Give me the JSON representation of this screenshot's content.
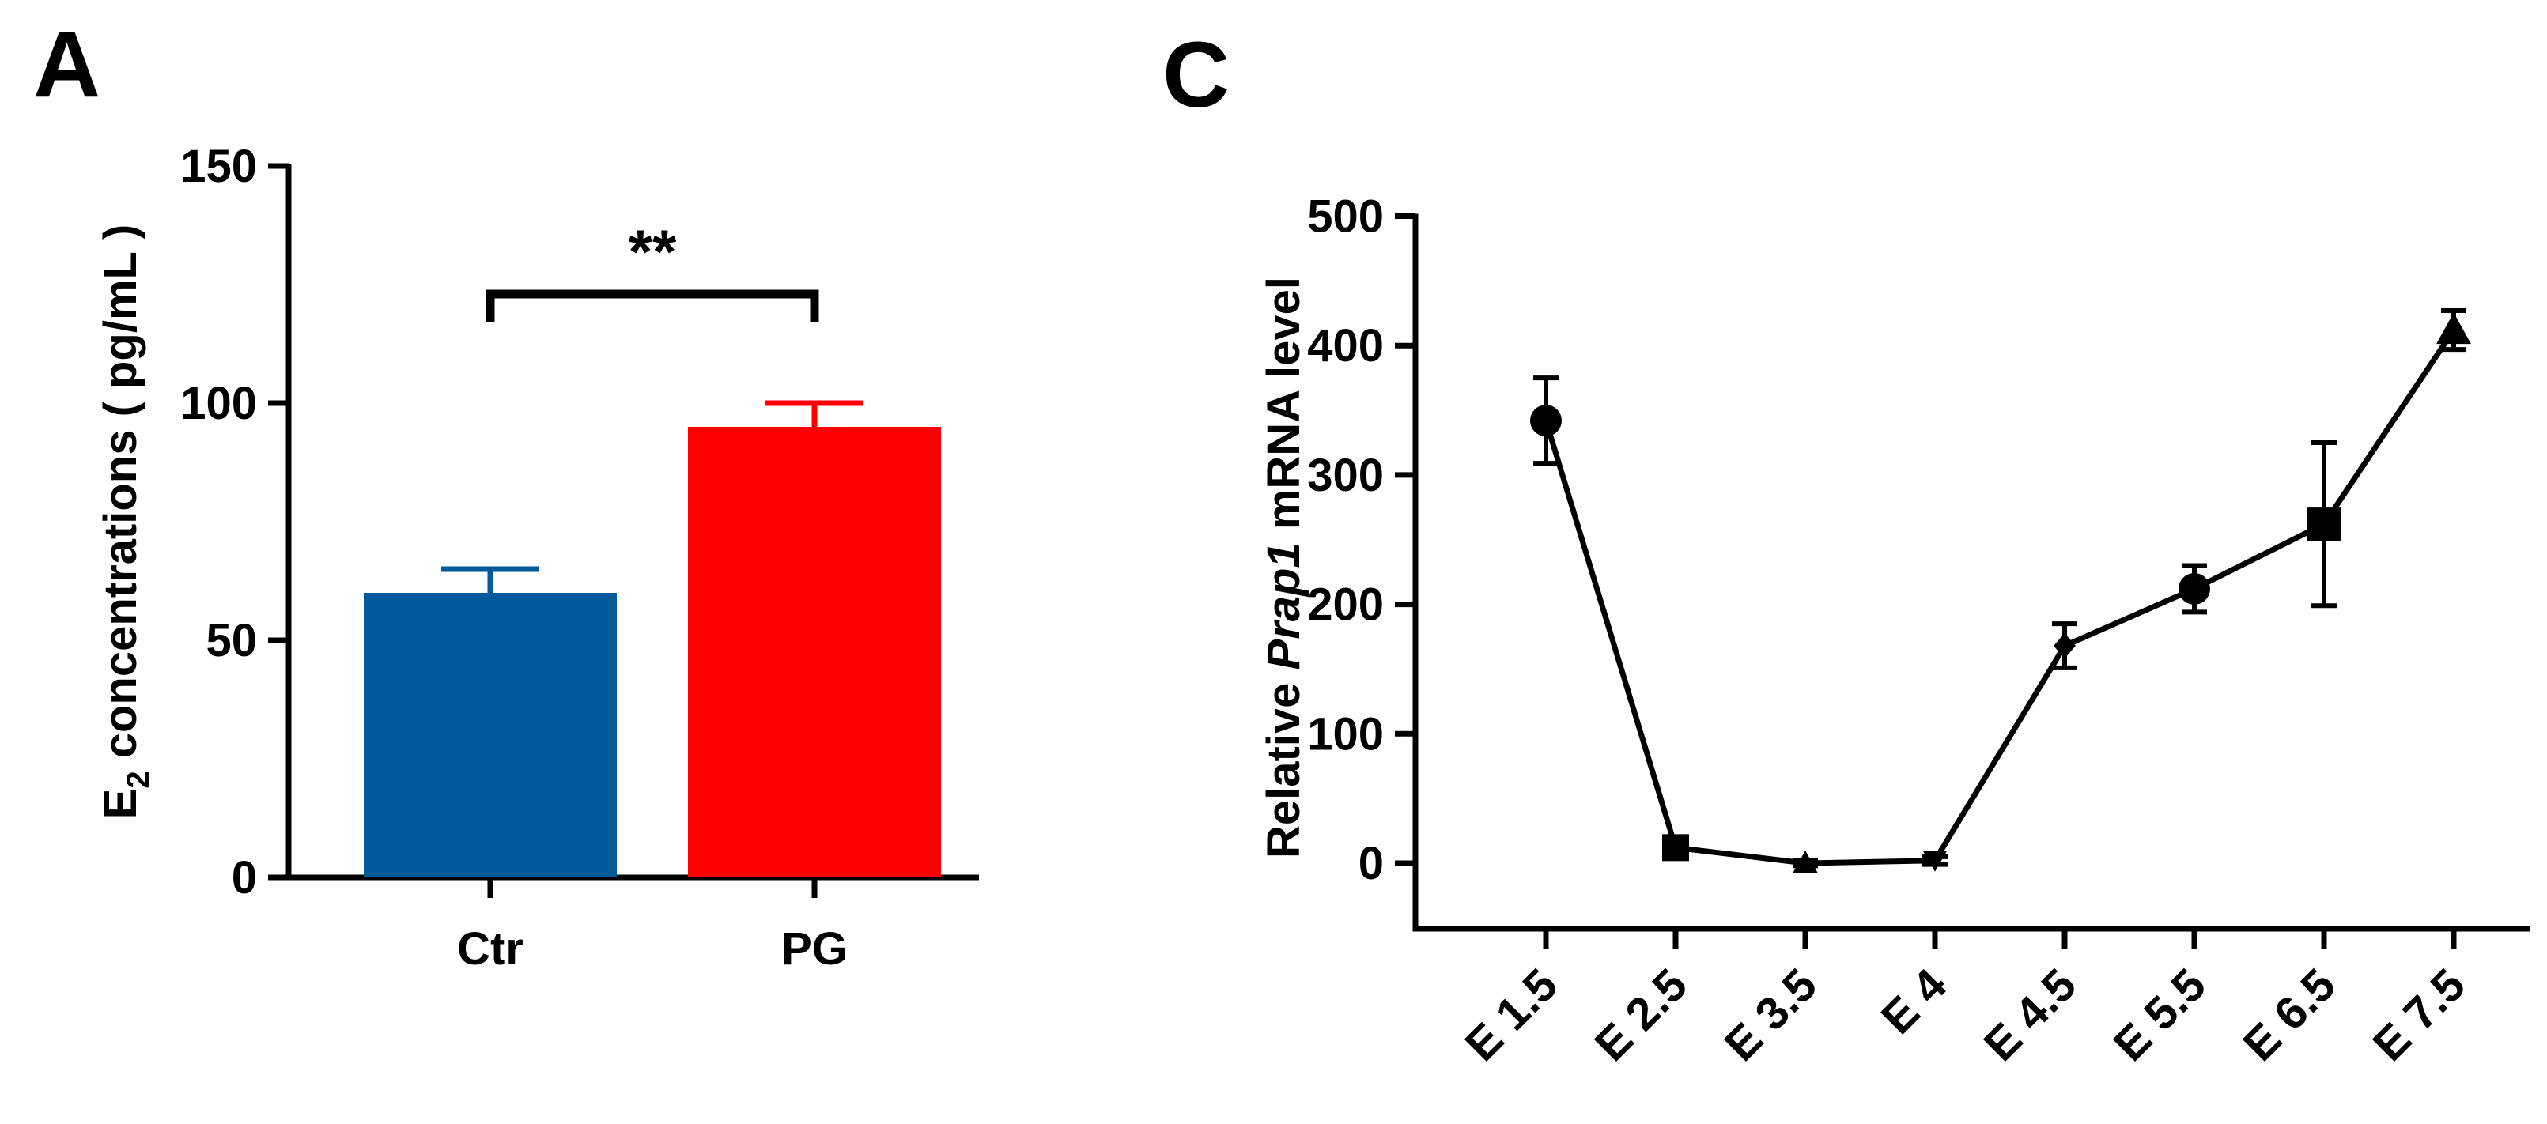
{
  "panels": {
    "a": "A",
    "c": "C"
  },
  "chart_data": [
    {
      "type": "bar",
      "panel": "A",
      "categories": [
        "Ctr",
        "PG"
      ],
      "values": [
        60,
        95
      ],
      "errors": [
        5,
        5
      ],
      "colors": [
        "#005a9c",
        "#ff0000"
      ],
      "ylabel_parts": [
        "E",
        "2",
        " concentrations ( pg/mL )"
      ],
      "ylim": [
        0,
        150
      ],
      "yticks": [
        0,
        50,
        100,
        150
      ],
      "ytick_labels": [
        "0",
        "50",
        "100",
        "150"
      ],
      "significance": {
        "between": [
          0,
          1
        ],
        "label": "**"
      }
    },
    {
      "type": "line",
      "panel": "C",
      "categories": [
        "E 1.5",
        "E 2.5",
        "E 3.5",
        "E 4",
        "E 4.5",
        "E 5.5",
        "E 6.5",
        "E 7.5"
      ],
      "values": [
        342,
        12,
        0,
        2,
        168,
        212,
        262,
        412
      ],
      "errors": [
        33,
        4,
        2,
        3,
        17,
        18,
        63,
        15
      ],
      "markers": [
        "circle",
        "square",
        "triangle-up",
        "triangle-down",
        "diamond",
        "circle",
        "square",
        "triangle-up"
      ],
      "ylabel_parts": [
        "Relative ",
        "Prap1",
        " mRNA level"
      ],
      "ylim": [
        -50,
        500
      ],
      "yticks": [
        0,
        100,
        200,
        300,
        400,
        500
      ],
      "ytick_labels": [
        "0",
        "100",
        "200",
        "300",
        "400",
        "500"
      ]
    }
  ]
}
